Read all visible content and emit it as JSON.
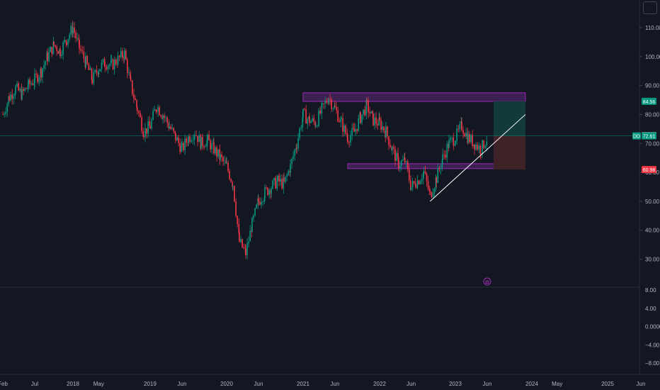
{
  "chart_data": {
    "type": "candlestick",
    "main_pane": {
      "y_ticks": [
        "110.00",
        "100.00",
        "90.00",
        "80.00",
        "70.00",
        "60.00",
        "50.00",
        "40.00",
        "30.00"
      ],
      "ylim": [
        25,
        117
      ],
      "price_labels": [
        {
          "text": "84.56",
          "value": 84.56,
          "color": "#089981"
        },
        {
          "text": "72.77",
          "value": 72.77,
          "color": "#787b86"
        },
        {
          "text": "72.61",
          "value": 72.61,
          "color": "#089981",
          "prefix": "DD"
        },
        {
          "text": "60.98",
          "value": 60.98,
          "color": "#f23645"
        }
      ],
      "current_price": 72.61,
      "zones": [
        {
          "name": "resistance-zone",
          "from": "2021-01",
          "to": "2023-12",
          "y_top": 87.5,
          "y_bottom": 84.5
        },
        {
          "name": "support-zone",
          "from": "2021-08",
          "to": "2023-08",
          "y_top": 63.0,
          "y_bottom": 61.3
        }
      ],
      "position": {
        "from": "2023-07",
        "to": "2023-12",
        "entry": 72.61,
        "target": 84.56,
        "stop": 60.98
      },
      "trendline": {
        "from": [
          "2022-09",
          50.0
        ],
        "to": [
          "2023-12",
          80.0
        ]
      },
      "markers": [
        {
          "name": "dividend-marker",
          "date": "2023-06",
          "glyph": "⚖"
        }
      ],
      "series": [
        {
          "name": "price",
          "data": [
            [
              "2017-02",
              80
            ],
            [
              "2017-03",
              86
            ],
            [
              "2017-04",
              89
            ],
            [
              "2017-05",
              87
            ],
            [
              "2017-06",
              90
            ],
            [
              "2017-07",
              92
            ],
            [
              "2017-08",
              95
            ],
            [
              "2017-09",
              100
            ],
            [
              "2017-10",
              104
            ],
            [
              "2017-11",
              102
            ],
            [
              "2017-12",
              106
            ],
            [
              "2018-01",
              110
            ],
            [
              "2018-02",
              103
            ],
            [
              "2018-03",
              98
            ],
            [
              "2018-04",
              92
            ],
            [
              "2018-05",
              96
            ],
            [
              "2018-06",
              98
            ],
            [
              "2018-07",
              97
            ],
            [
              "2018-08",
              99
            ],
            [
              "2018-09",
              101
            ],
            [
              "2018-10",
              90
            ],
            [
              "2018-11",
              82
            ],
            [
              "2018-12",
              74
            ],
            [
              "2019-01",
              76
            ],
            [
              "2019-02",
              83
            ],
            [
              "2019-03",
              80
            ],
            [
              "2019-04",
              76
            ],
            [
              "2019-05",
              72
            ],
            [
              "2019-06",
              68
            ],
            [
              "2019-07",
              72
            ],
            [
              "2019-08",
              74
            ],
            [
              "2019-09",
              70
            ],
            [
              "2019-10",
              71
            ],
            [
              "2019-11",
              68
            ],
            [
              "2019-12",
              65
            ],
            [
              "2020-01",
              62
            ],
            [
              "2020-02",
              56
            ],
            [
              "2020-03",
              36
            ],
            [
              "2020-04",
              32
            ],
            [
              "2020-05",
              42
            ],
            [
              "2020-06",
              50
            ],
            [
              "2020-07",
              53
            ],
            [
              "2020-08",
              55
            ],
            [
              "2020-09",
              57
            ],
            [
              "2020-10",
              56
            ],
            [
              "2020-11",
              62
            ],
            [
              "2020-12",
              70
            ],
            [
              "2021-01",
              80
            ],
            [
              "2021-02",
              78
            ],
            [
              "2021-03",
              77
            ],
            [
              "2021-04",
              82
            ],
            [
              "2021-05",
              86
            ],
            [
              "2021-06",
              82
            ],
            [
              "2021-07",
              77
            ],
            [
              "2021-08",
              72
            ],
            [
              "2021-09",
              74
            ],
            [
              "2021-10",
              79
            ],
            [
              "2021-11",
              83
            ],
            [
              "2021-12",
              78
            ],
            [
              "2022-01",
              77
            ],
            [
              "2022-02",
              74
            ],
            [
              "2022-03",
              68
            ],
            [
              "2022-04",
              63
            ],
            [
              "2022-05",
              64
            ],
            [
              "2022-06",
              55
            ],
            [
              "2022-07",
              57
            ],
            [
              "2022-08",
              60
            ],
            [
              "2022-09",
              52
            ],
            [
              "2022-10",
              58
            ],
            [
              "2022-11",
              65
            ],
            [
              "2022-12",
              70
            ],
            [
              "2023-01",
              72
            ],
            [
              "2023-02",
              76
            ],
            [
              "2023-03",
              72
            ],
            [
              "2023-04",
              70
            ],
            [
              "2023-05",
              68
            ],
            [
              "2023-06",
              72
            ]
          ]
        }
      ]
    },
    "lower_pane": {
      "y_ticks": [
        "8.00",
        "4.00",
        "0.0000",
        "−4.00",
        "−8.00"
      ],
      "ylim": [
        -10.5,
        10
      ]
    },
    "x_ticks": [
      "Feb",
      "Jul",
      "2018",
      "May",
      "2019",
      "Jun",
      "2020",
      "Jun",
      "2021",
      "Jun",
      "2022",
      "Jun",
      "2023",
      "Jun",
      "2024",
      "May",
      "2025",
      "Jun"
    ],
    "x_tick_dates": [
      "2017-02",
      "2017-07",
      "2018-01",
      "2018-05",
      "2019-01",
      "2019-06",
      "2020-01",
      "2020-06",
      "2021-01",
      "2021-06",
      "2022-01",
      "2022-06",
      "2023-01",
      "2023-06",
      "2024-01",
      "2024-05",
      "2025-01",
      "2025-06"
    ],
    "colors": {
      "background": "#131722",
      "up": "#089981",
      "down": "#f23645",
      "grid": "#2a2e39",
      "zone_fill": "#5b2a78",
      "zone_border": "#9c27b0",
      "trendline": "#ffffff",
      "target_fill": "#133a3b",
      "stop_fill": "#3f2228",
      "current_price_line": "#089981"
    }
  }
}
